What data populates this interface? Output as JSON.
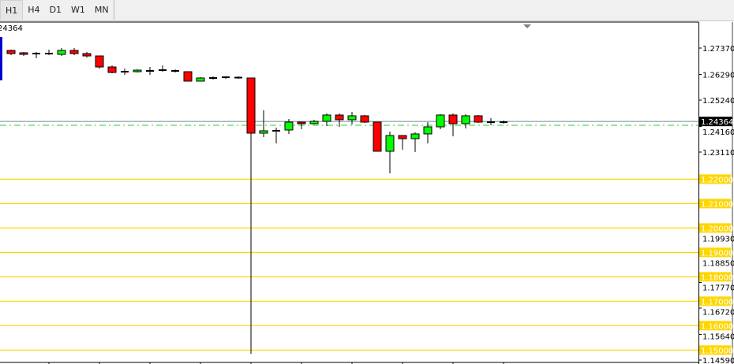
{
  "timeframe_tabs": [
    {
      "label": "H1",
      "active": true
    },
    {
      "label": "H4",
      "active": false
    },
    {
      "label": "D1",
      "active": false
    },
    {
      "label": "W1",
      "active": false
    },
    {
      "label": "MN",
      "active": false
    }
  ],
  "corner_price_label": "24364",
  "colors": {
    "bull": "#00FF00",
    "bear": "#FF0000",
    "level_line": "#FFD700",
    "bid_line": "#778899",
    "ask_line": "#32CD32",
    "price_tag_bg": "#000000"
  },
  "chart_data": {
    "type": "candlestick",
    "y_range": [
      1.1455,
      1.284
    ],
    "y_ticks": [
      "1.27370",
      "1.26290",
      "1.25240",
      "1.24160",
      "1.23110",
      "1.19930",
      "1.18850",
      "1.17770",
      "1.16720",
      "1.15640",
      "1.14590"
    ],
    "current_price": "1.24364",
    "ask_line_price": 1.24208,
    "levels": [
      "1.22000",
      "1.21000",
      "1.20000",
      "1.19000",
      "1.18000",
      "1.17000",
      "1.16000",
      "1.15000"
    ],
    "candles": [
      [
        1.27273,
        1.27305,
        1.2708,
        1.27144
      ],
      [
        1.27176,
        1.27209,
        1.27047,
        1.27112
      ],
      [
        1.27144,
        1.27209,
        1.2695,
        1.27144
      ],
      [
        1.27144,
        1.27305,
        1.2708,
        1.27144
      ],
      [
        1.27112,
        1.2737,
        1.27047,
        1.27273
      ],
      [
        1.27273,
        1.2737,
        1.2708,
        1.27144
      ],
      [
        1.27144,
        1.27209,
        1.26983,
        1.27047
      ],
      [
        1.27047,
        1.27047,
        1.26531,
        1.26595
      ],
      [
        1.26595,
        1.2666,
        1.26337,
        1.2637
      ],
      [
        1.26402,
        1.26531,
        1.26273,
        1.26402
      ],
      [
        1.26402,
        1.26499,
        1.2637,
        1.26466
      ],
      [
        1.26434,
        1.26595,
        1.26273,
        1.26434
      ],
      [
        1.26466,
        1.2666,
        1.26402,
        1.26466
      ],
      [
        1.26434,
        1.26499,
        1.2637,
        1.26434
      ],
      [
        1.26402,
        1.26402,
        1.26015,
        1.26015
      ],
      [
        1.26015,
        1.26176,
        1.26015,
        1.26144
      ],
      [
        1.26144,
        1.26208,
        1.26079,
        1.26144
      ],
      [
        1.26176,
        1.26208,
        1.26112,
        1.26176
      ],
      [
        1.2616,
        1.26208,
        1.26112,
        1.2616
      ],
      [
        1.26144,
        1.26144,
        1.14849,
        1.23885
      ],
      [
        1.23885,
        1.24821,
        1.23724,
        1.23982
      ],
      [
        1.23982,
        1.24111,
        1.23466,
        1.23982
      ],
      [
        1.24014,
        1.24466,
        1.23853,
        1.24337
      ],
      [
        1.24337,
        1.24337,
        1.24046,
        1.24272
      ],
      [
        1.24272,
        1.24434,
        1.2424,
        1.24369
      ],
      [
        1.24369,
        1.24692,
        1.24175,
        1.24627
      ],
      [
        1.24627,
        1.24692,
        1.24143,
        1.24434
      ],
      [
        1.24434,
        1.24756,
        1.2424,
        1.24595
      ],
      [
        1.24595,
        1.24627,
        1.24304,
        1.24337
      ],
      [
        1.24337,
        1.24337,
        1.23143,
        1.23143
      ],
      [
        1.23143,
        1.23949,
        1.2224,
        1.23788
      ],
      [
        1.23788,
        1.23788,
        1.23207,
        1.23659
      ],
      [
        1.23659,
        1.23917,
        1.23111,
        1.23853
      ],
      [
        1.23853,
        1.24337,
        1.23466,
        1.24143
      ],
      [
        1.24143,
        1.24659,
        1.24046,
        1.24627
      ],
      [
        1.24627,
        1.24692,
        1.23756,
        1.24272
      ],
      [
        1.24272,
        1.24659,
        1.24079,
        1.24595
      ],
      [
        1.24595,
        1.24627,
        1.24304,
        1.24337
      ],
      [
        1.24337,
        1.24498,
        1.24208,
        1.24337
      ],
      [
        1.24337,
        1.24401,
        1.24272,
        1.24369
      ]
    ]
  }
}
